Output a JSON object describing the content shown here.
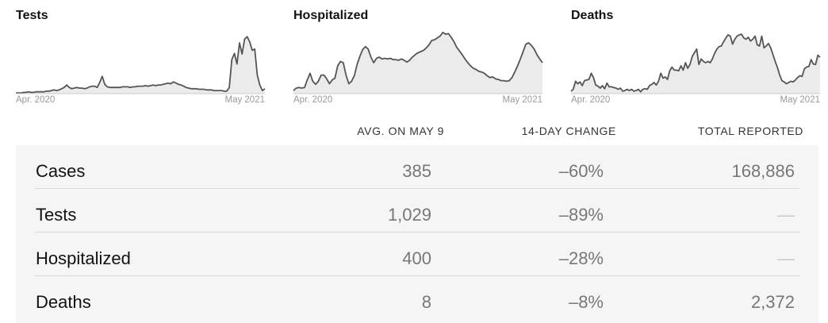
{
  "charts": [
    {
      "title": "Tests",
      "start_label": "Apr. 2020",
      "end_label": "May 2021"
    },
    {
      "title": "Hospitalized",
      "start_label": "Apr. 2020",
      "end_label": "May 2021"
    },
    {
      "title": "Deaths",
      "start_label": "Apr. 2020",
      "end_label": "May 2021"
    }
  ],
  "chart_data": [
    {
      "type": "area",
      "title": "Tests",
      "x_range": [
        "Apr. 2020",
        "May 2021"
      ],
      "y_range": [
        0,
        100
      ],
      "values": [
        1,
        1,
        1,
        2,
        2,
        3,
        2,
        2,
        3,
        3,
        3,
        3,
        4,
        4,
        5,
        6,
        5,
        6,
        8,
        10,
        14,
        10,
        8,
        9,
        10,
        9,
        9,
        8,
        9,
        11,
        12,
        12,
        10,
        18,
        28,
        15,
        11,
        10,
        10,
        10,
        10,
        10,
        11,
        11,
        11,
        10,
        11,
        11,
        12,
        12,
        12,
        13,
        12,
        13,
        14,
        13,
        14,
        14,
        15,
        16,
        17,
        16,
        19,
        17,
        15,
        14,
        12,
        10,
        9,
        8,
        8,
        8,
        7,
        7,
        7,
        6,
        6,
        6,
        5,
        5,
        5,
        5,
        4,
        4,
        10,
        55,
        65,
        48,
        82,
        64,
        88,
        92,
        84,
        70,
        72,
        30,
        14,
        5,
        8
      ]
    },
    {
      "type": "area",
      "title": "Hospitalized",
      "x_range": [
        "Apr. 2020",
        "May 2021"
      ],
      "y_range": [
        0,
        100
      ],
      "values": [
        5,
        9,
        10,
        9,
        10,
        22,
        33,
        20,
        15,
        20,
        30,
        30,
        24,
        16,
        22,
        25,
        45,
        52,
        50,
        30,
        16,
        20,
        29,
        47,
        60,
        71,
        76,
        72,
        59,
        50,
        57,
        59,
        56,
        57,
        56,
        57,
        55,
        55,
        54,
        56,
        54,
        51,
        54,
        59,
        63,
        66,
        68,
        70,
        74,
        79,
        86,
        87,
        90,
        93,
        99,
        96,
        97,
        91,
        84,
        75,
        69,
        63,
        56,
        50,
        45,
        41,
        39,
        36,
        35,
        33,
        29,
        26,
        27,
        24,
        23,
        21,
        21,
        20,
        21,
        26,
        35,
        45,
        56,
        68,
        80,
        82,
        78,
        72,
        63,
        56,
        50
      ]
    },
    {
      "type": "area",
      "title": "Deaths",
      "x_range": [
        "Apr. 2020",
        "May 2021"
      ],
      "y_range": [
        0,
        100
      ],
      "values": [
        4,
        7,
        20,
        16,
        19,
        13,
        21,
        22,
        23,
        33,
        26,
        14,
        12,
        9,
        13,
        8,
        17,
        11,
        11,
        10,
        9,
        7,
        9,
        4,
        5,
        7,
        5,
        7,
        4,
        5,
        7,
        3,
        7,
        8,
        7,
        13,
        15,
        18,
        14,
        20,
        33,
        25,
        27,
        23,
        37,
        43,
        38,
        38,
        37,
        45,
        38,
        50,
        41,
        47,
        60,
        66,
        72,
        47,
        56,
        52,
        50,
        52,
        50,
        56,
        65,
        72,
        76,
        77,
        84,
        90,
        95,
        93,
        80,
        88,
        93,
        95,
        96,
        90,
        88,
        91,
        85,
        88,
        93,
        79,
        77,
        93,
        74,
        77,
        81,
        74,
        63,
        52,
        42,
        30,
        21,
        19,
        16,
        18,
        20,
        19,
        22,
        26,
        29,
        28,
        40,
        43,
        44,
        55,
        48,
        47,
        62,
        59
      ]
    }
  ],
  "table": {
    "headers": {
      "avg": "AVG. ON MAY 9",
      "change": "14-DAY CHANGE",
      "total": "TOTAL REPORTED"
    },
    "rows": [
      {
        "name": "Cases",
        "avg": "385",
        "change": "–60%",
        "total": "168,886"
      },
      {
        "name": "Tests",
        "avg": "1,029",
        "change": "–89%",
        "total": "—"
      },
      {
        "name": "Hospitalized",
        "avg": "400",
        "change": "–28%",
        "total": "—"
      },
      {
        "name": "Deaths",
        "avg": "8",
        "change": "–8%",
        "total": "2,372"
      }
    ]
  },
  "colors": {
    "line": "#555555",
    "area": "#ebebeb",
    "table_bg": "#f5f5f5",
    "value_text": "#777777"
  }
}
